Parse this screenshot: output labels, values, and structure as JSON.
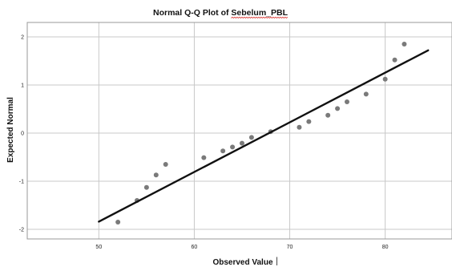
{
  "chart_data": {
    "type": "scatter",
    "title": "Normal Q-Q Plot of Sebelum_PBL",
    "title_prefix": "Normal Q-Q Plot of ",
    "title_variable": "Sebelum_PBL",
    "xlabel": "Observed Value",
    "ylabel": "Expected Normal",
    "xlim": [
      42.5,
      87
    ],
    "ylim": [
      -2.2,
      2.3
    ],
    "x_ticks": [
      50,
      60,
      70,
      80
    ],
    "y_ticks": [
      2,
      1,
      0,
      -1,
      -2
    ],
    "x_tick_labels": [
      "50",
      "60",
      "70",
      "80"
    ],
    "y_tick_labels": [
      "2",
      "1",
      "0",
      "-1",
      "-2"
    ],
    "grid": true,
    "legend": "none",
    "points": [
      {
        "x": 52,
        "y": -1.85
      },
      {
        "x": 54,
        "y": -1.4
      },
      {
        "x": 55,
        "y": -1.13
      },
      {
        "x": 56,
        "y": -0.87
      },
      {
        "x": 57,
        "y": -0.65
      },
      {
        "x": 61,
        "y": -0.51
      },
      {
        "x": 63,
        "y": -0.37
      },
      {
        "x": 64,
        "y": -0.29
      },
      {
        "x": 65,
        "y": -0.21
      },
      {
        "x": 66,
        "y": -0.09
      },
      {
        "x": 68,
        "y": 0.03
      },
      {
        "x": 71,
        "y": 0.12
      },
      {
        "x": 72,
        "y": 0.24
      },
      {
        "x": 74,
        "y": 0.37
      },
      {
        "x": 75,
        "y": 0.51
      },
      {
        "x": 76,
        "y": 0.65
      },
      {
        "x": 78,
        "y": 0.81
      },
      {
        "x": 80,
        "y": 1.12
      },
      {
        "x": 81,
        "y": 1.52
      },
      {
        "x": 82,
        "y": 1.85
      }
    ],
    "reference_line": {
      "x_start": 50,
      "y_start": -1.84,
      "x_end": 84.5,
      "y_end": 1.72
    },
    "colors": {
      "points": "#7a7a7a",
      "line": "#111111",
      "grid": "#c8c8c8",
      "frame": "#999999",
      "spellcheck_underline": "#d9302c"
    }
  }
}
